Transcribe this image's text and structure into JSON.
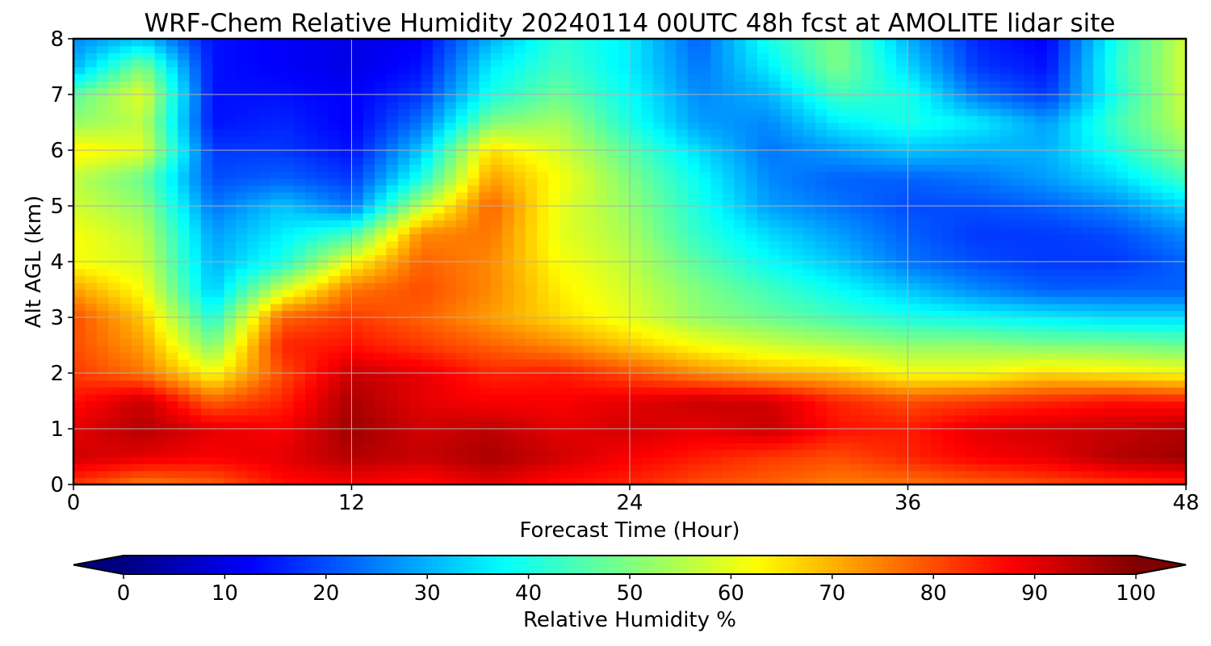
{
  "chart_data": {
    "type": "heatmap",
    "title": "WRF-Chem Relative Humidity 20240114 00UTC 48h fcst at AMOLITE lidar site",
    "xlabel": "Forecast Time (Hour)",
    "ylabel": "Alt AGL (km)",
    "xlim": [
      0,
      48
    ],
    "ylim": [
      0,
      8
    ],
    "x_ticks": [
      "0",
      "12",
      "24",
      "36",
      "48"
    ],
    "y_ticks": [
      "0",
      "1",
      "2",
      "3",
      "4",
      "5",
      "6",
      "7",
      "8"
    ],
    "grid": true,
    "colorbar": {
      "label": "Relative Humidity %",
      "min": 0,
      "max": 100,
      "ticks": [
        "0",
        "10",
        "20",
        "30",
        "40",
        "50",
        "60",
        "70",
        "80",
        "90",
        "100"
      ],
      "colormap": "jet",
      "extend": "both",
      "colors": [
        "#00007f",
        "#0000ff",
        "#007fff",
        "#00ffff",
        "#7fff7f",
        "#ffff00",
        "#ff7f00",
        "#ff0000",
        "#7f0000"
      ]
    },
    "x": [
      0,
      3,
      6,
      9,
      12,
      15,
      18,
      21,
      24,
      27,
      30,
      33,
      36,
      39,
      42,
      45,
      48
    ],
    "y": [
      0,
      0.5,
      1,
      1.5,
      2,
      2.5,
      3,
      3.5,
      4,
      4.5,
      5,
      5.5,
      6,
      6.5,
      7,
      7.5,
      8
    ],
    "z": [
      [
        82,
        75,
        78,
        86,
        88,
        86,
        90,
        86,
        84,
        80,
        78,
        75,
        76,
        78,
        80,
        82,
        84
      ],
      [
        92,
        90,
        88,
        90,
        95,
        93,
        96,
        92,
        88,
        85,
        82,
        80,
        84,
        88,
        90,
        95,
        97
      ],
      [
        90,
        95,
        90,
        88,
        97,
        92,
        94,
        90,
        92,
        90,
        93,
        86,
        85,
        90,
        92,
        93,
        95
      ],
      [
        86,
        93,
        78,
        84,
        96,
        90,
        88,
        88,
        90,
        93,
        92,
        84,
        80,
        82,
        84,
        86,
        85
      ],
      [
        82,
        76,
        62,
        80,
        93,
        90,
        84,
        85,
        80,
        74,
        70,
        68,
        62,
        62,
        66,
        64,
        62
      ],
      [
        80,
        72,
        50,
        84,
        86,
        82,
        78,
        74,
        68,
        62,
        58,
        55,
        52,
        52,
        50,
        50,
        48
      ],
      [
        80,
        68,
        40,
        78,
        82,
        78,
        72,
        66,
        60,
        52,
        48,
        44,
        40,
        38,
        36,
        34,
        34
      ],
      [
        72,
        62,
        32,
        58,
        76,
        80,
        74,
        64,
        58,
        50,
        44,
        38,
        32,
        26,
        22,
        22,
        22
      ],
      [
        62,
        58,
        30,
        40,
        62,
        78,
        74,
        62,
        56,
        46,
        38,
        32,
        24,
        20,
        18,
        18,
        22
      ],
      [
        62,
        56,
        28,
        36,
        44,
        74,
        76,
        60,
        54,
        42,
        34,
        28,
        22,
        18,
        18,
        20,
        26
      ],
      [
        58,
        52,
        24,
        32,
        24,
        56,
        78,
        60,
        52,
        40,
        28,
        24,
        20,
        20,
        22,
        26,
        34
      ],
      [
        56,
        48,
        20,
        22,
        18,
        40,
        72,
        62,
        50,
        38,
        26,
        22,
        22,
        24,
        28,
        34,
        44
      ],
      [
        64,
        60,
        18,
        18,
        14,
        32,
        66,
        58,
        46,
        34,
        24,
        28,
        32,
        30,
        30,
        40,
        52
      ],
      [
        52,
        56,
        14,
        16,
        12,
        24,
        50,
        54,
        40,
        28,
        26,
        36,
        40,
        36,
        28,
        44,
        56
      ],
      [
        46,
        60,
        14,
        14,
        12,
        18,
        40,
        48,
        38,
        26,
        30,
        44,
        40,
        24,
        18,
        40,
        58
      ],
      [
        30,
        50,
        14,
        12,
        10,
        14,
        36,
        44,
        36,
        24,
        36,
        50,
        34,
        18,
        14,
        42,
        58
      ],
      [
        26,
        32,
        14,
        12,
        10,
        12,
        30,
        42,
        36,
        22,
        40,
        50,
        30,
        16,
        12,
        40,
        58
      ]
    ]
  }
}
